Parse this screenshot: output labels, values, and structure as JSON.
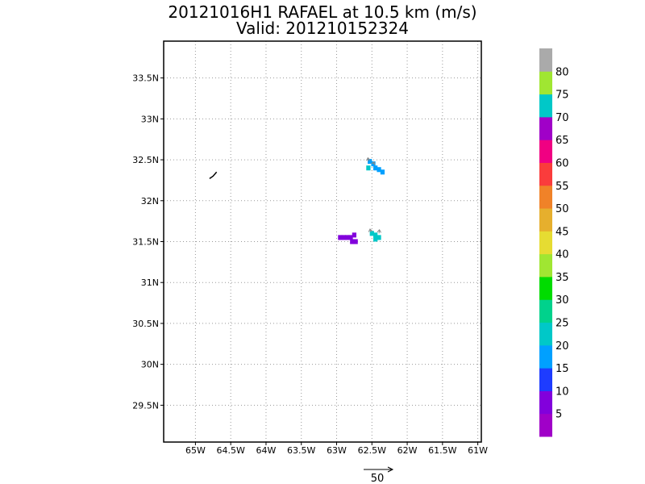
{
  "title": {
    "line1": "20121016H1  RAFAEL  at 10.5 km (m/s)",
    "line2": "Valid: 201210152324"
  },
  "map": {
    "lon_range": [
      -65.45,
      -60.95
    ],
    "lat_range": [
      29.05,
      33.95
    ],
    "grid": true,
    "x_ticks": [
      {
        "value": -65.0,
        "label": "65W"
      },
      {
        "value": -64.5,
        "label": "64.5W"
      },
      {
        "value": -64.0,
        "label": "64W"
      },
      {
        "value": -63.5,
        "label": "63.5W"
      },
      {
        "value": -63.0,
        "label": "63W"
      },
      {
        "value": -62.5,
        "label": "62.5W"
      },
      {
        "value": -62.0,
        "label": "62W"
      },
      {
        "value": -61.5,
        "label": "61.5W"
      },
      {
        "value": -61.0,
        "label": "61W"
      }
    ],
    "y_ticks": [
      {
        "value": 29.5,
        "label": "29.5N"
      },
      {
        "value": 30.0,
        "label": "30N"
      },
      {
        "value": 30.5,
        "label": "30.5N"
      },
      {
        "value": 31.0,
        "label": "31N"
      },
      {
        "value": 31.5,
        "label": "31.5N"
      },
      {
        "value": 32.0,
        "label": "32N"
      },
      {
        "value": 32.5,
        "label": "32.5N"
      },
      {
        "value": 33.0,
        "label": "33N"
      },
      {
        "value": 33.5,
        "label": "33.5N"
      }
    ],
    "coastline": [
      {
        "lon": -64.8,
        "lat": 32.27
      },
      {
        "lon": -64.75,
        "lat": 32.3
      },
      {
        "lon": -64.7,
        "lat": 32.35
      }
    ],
    "data_cells": [
      {
        "lon": -62.53,
        "lat": 32.48,
        "value": 18,
        "color": "#00a0ff"
      },
      {
        "lon": -62.48,
        "lat": 32.45,
        "value": 18,
        "color": "#00a0ff"
      },
      {
        "lon": -62.45,
        "lat": 32.4,
        "value": 18,
        "color": "#00a0ff"
      },
      {
        "lon": -62.4,
        "lat": 32.38,
        "value": 18,
        "color": "#00a0ff"
      },
      {
        "lon": -62.35,
        "lat": 32.35,
        "value": 18,
        "color": "#00a0ff"
      },
      {
        "lon": -62.55,
        "lat": 32.4,
        "value": 23,
        "color": "#00c8c8"
      },
      {
        "lon": -62.5,
        "lat": 31.6,
        "value": 23,
        "color": "#00c8c8"
      },
      {
        "lon": -62.45,
        "lat": 31.58,
        "value": 23,
        "color": "#00c8c8"
      },
      {
        "lon": -62.4,
        "lat": 31.55,
        "value": 23,
        "color": "#00c8c8"
      },
      {
        "lon": -62.45,
        "lat": 31.53,
        "value": 23,
        "color": "#00c8c8"
      },
      {
        "lon": -62.95,
        "lat": 31.55,
        "value": 7,
        "color": "#8200dc"
      },
      {
        "lon": -62.9,
        "lat": 31.55,
        "value": 7,
        "color": "#8200dc"
      },
      {
        "lon": -62.85,
        "lat": 31.55,
        "value": 7,
        "color": "#8200dc"
      },
      {
        "lon": -62.8,
        "lat": 31.55,
        "value": 7,
        "color": "#8200dc"
      },
      {
        "lon": -62.75,
        "lat": 31.58,
        "value": 7,
        "color": "#8200dc"
      },
      {
        "lon": -62.73,
        "lat": 31.5,
        "value": 7,
        "color": "#8200dc"
      },
      {
        "lon": -62.78,
        "lat": 31.5,
        "value": 7,
        "color": "#8200dc"
      }
    ],
    "vectors": [
      {
        "lon": -62.55,
        "lat": 32.48,
        "u": -0.5,
        "v": 4
      },
      {
        "lon": -62.48,
        "lat": 32.45,
        "u": 1.0,
        "v": 2
      },
      {
        "lon": -62.52,
        "lat": 31.62,
        "u": -0.5,
        "v": 3
      },
      {
        "lon": -62.4,
        "lat": 31.6,
        "u": 0.5,
        "v": 4
      }
    ]
  },
  "colorbar": {
    "colors": [
      "#a000c8",
      "#8200dc",
      "#1e3cff",
      "#00a0ff",
      "#00c8c8",
      "#00d28c",
      "#00dc00",
      "#a0e632",
      "#e6dc32",
      "#e6af2d",
      "#f08228",
      "#fa3c3c",
      "#f00082",
      "#a000c8",
      "#00c8c8",
      "#a0e632",
      "#aaaaaa"
    ],
    "labels": [
      "5",
      "10",
      "15",
      "20",
      "25",
      "30",
      "35",
      "40",
      "45",
      "50",
      "55",
      "60",
      "65",
      "70",
      "75",
      "80"
    ]
  },
  "reference_vector": {
    "label": "50"
  }
}
